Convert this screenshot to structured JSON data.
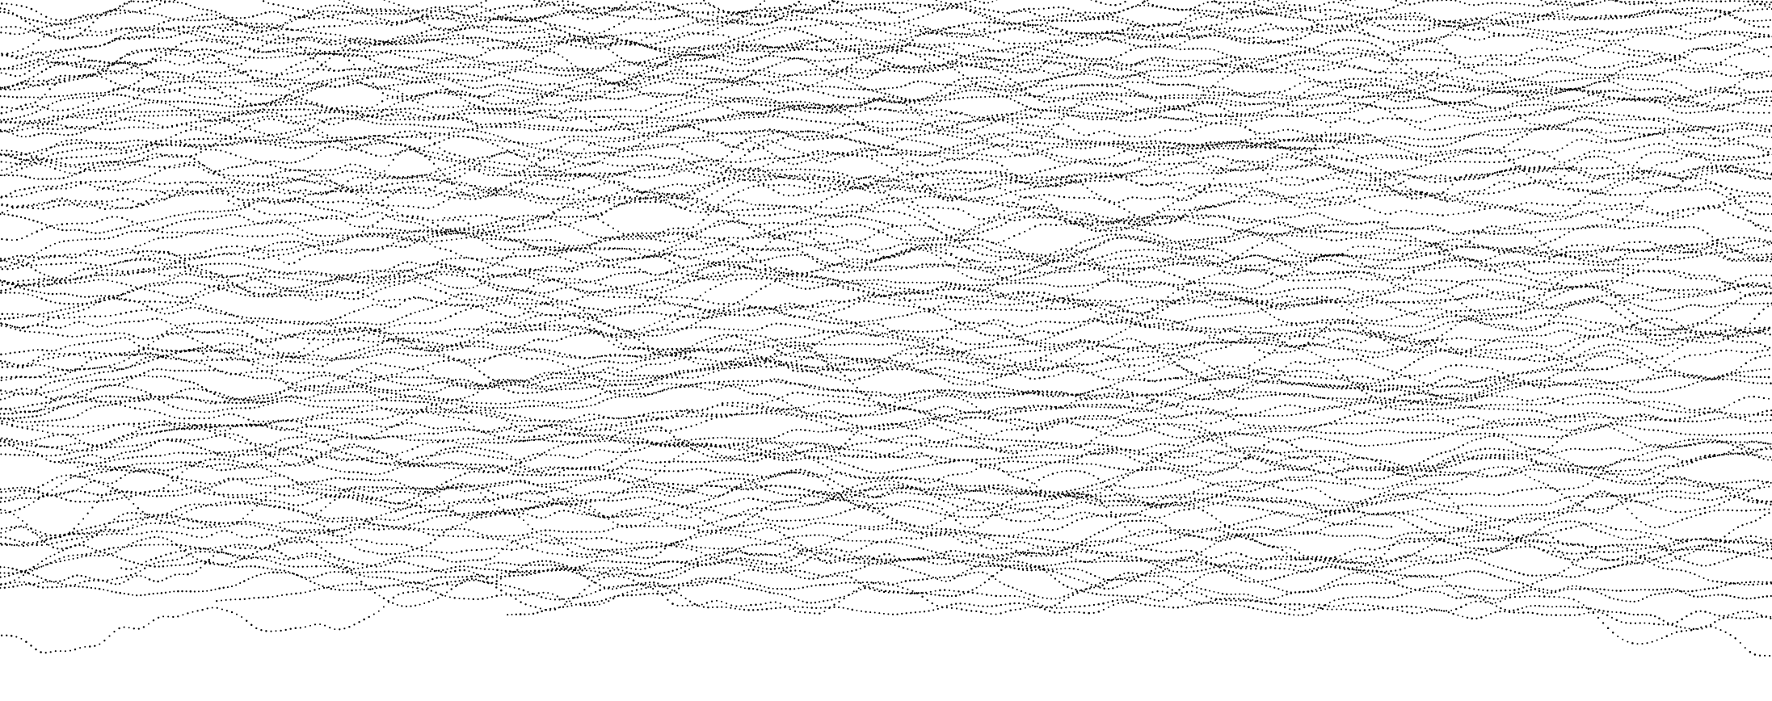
{
  "artwork": {
    "kind": "generative line drawing",
    "style": "dotted wavy horizontal strands stacked vertically, densest in the upper half, thinning toward the bottom",
    "background_color": "#ffffff",
    "dot_color": "#000000",
    "strand_count": 120
  }
}
